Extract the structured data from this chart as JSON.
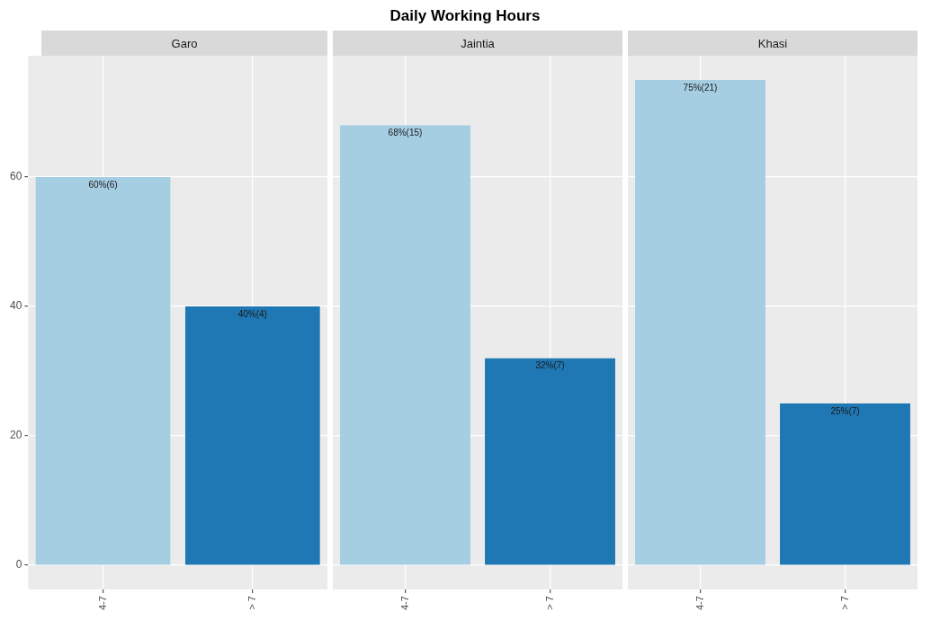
{
  "chart_data": [
    {
      "type": "bar",
      "subtitle": "Garo",
      "categories": [
        "4-7",
        "> 7"
      ],
      "values": [
        60,
        40
      ],
      "colors": [
        "#a6cee3",
        "#1f78b4"
      ],
      "value_labels": [
        "60%(6)",
        "40%(4)"
      ],
      "ylim": [
        -3.75,
        78.75
      ],
      "yticks": [
        0,
        20,
        40,
        60
      ],
      "grid": true
    },
    {
      "type": "bar",
      "title": "Daily Working Hours",
      "subtitle": "Jaintia",
      "categories": [
        "4-7",
        "> 7"
      ],
      "values": [
        68,
        32
      ],
      "colors": [
        "#a6cee3",
        "#1f78b4"
      ],
      "value_labels": [
        "68%(15)",
        "32%(7)"
      ],
      "ylim": [
        -3.75,
        78.75
      ],
      "yticks": [
        0,
        20,
        40,
        60
      ],
      "grid": true,
      "tick_labels": "x"
    },
    {
      "type": "bar",
      "subtitle": "Khasi",
      "categories": [
        "4-7",
        "> 7"
      ],
      "values": [
        75,
        25
      ],
      "colors": [
        "#a6cee3",
        "#1f78b4"
      ],
      "value_labels": [
        "75%(21)",
        "25%(7)"
      ],
      "ylim": [
        -3.75,
        78.75
      ],
      "yticks": [
        0,
        20,
        40,
        60
      ],
      "grid": true,
      "tick_labels": "x"
    }
  ]
}
